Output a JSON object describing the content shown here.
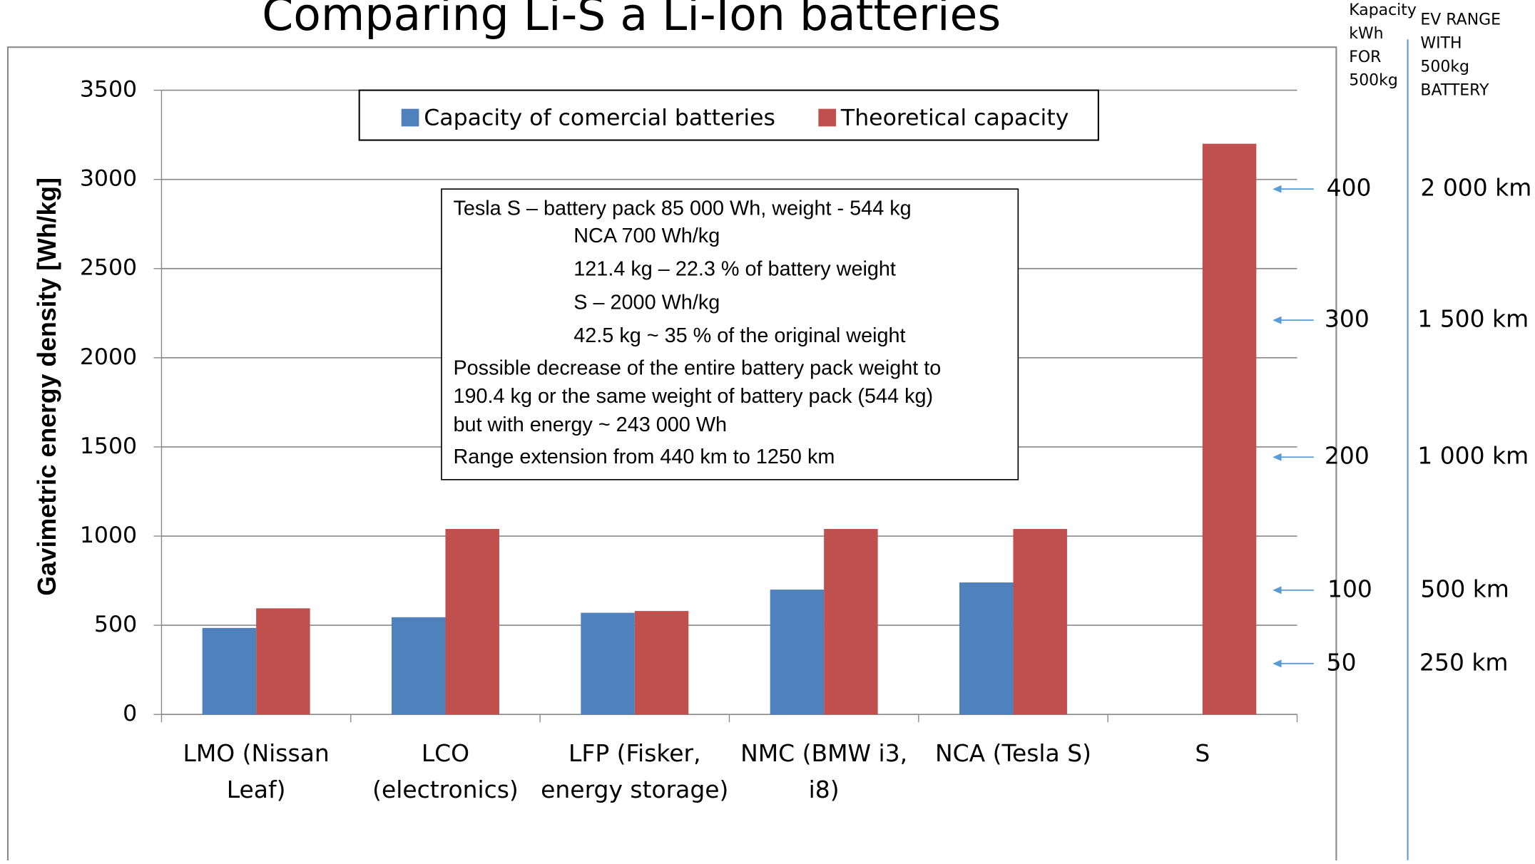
{
  "chart_data": {
    "type": "bar",
    "title": "Comparing Li-S a Li-Ion batteries",
    "ylabel": "Gavimetric energy density [Wh/kg]",
    "categories": [
      "LMO (Nissan\nLeaf)",
      "LCO\n(electronics)",
      "LFP (Fisker,\nenergy storage)",
      "NMC (BMW i3,\ni8)",
      "NCA (Tesla S)",
      "S"
    ],
    "series": [
      {
        "name": "Capacity of comercial batteries",
        "color": "#4f81bd",
        "values": [
          485,
          545,
          570,
          700,
          740,
          null
        ]
      },
      {
        "name": "Theoretical capacity",
        "color": "#c0504d",
        "values": [
          595,
          1040,
          580,
          1040,
          1040,
          3200
        ]
      }
    ],
    "ylim": [
      0,
      3500
    ],
    "yticks": [
      0,
      500,
      1000,
      1500,
      2000,
      2500,
      3000,
      3500
    ],
    "grid": true,
    "textbox": [
      "Tesla S – battery pack 85 000 Wh, weight - 544 kg",
      "NCA 700 Wh/kg",
      "121.4 kg – 22.3 % of battery weight",
      "S – 2000 Wh/kg",
      "42.5 kg ~ 35 % of the original weight",
      "Possible decrease of the entire battery pack weight to",
      "190.4 kg or the same weight  of battery pack (544 kg)",
      "but with energy ~ 243 000 Wh",
      "Range extension from 440 km to 1250 km"
    ],
    "side_headers": [
      "Kapacity\nkWh\nFOR\n500kg",
      "EV RANGE\nWITH\n500kg\nBATTERY"
    ],
    "side_annotations": [
      {
        "capacity": "400",
        "range": "2 000 km"
      },
      {
        "capacity": "300",
        "range": "1 500 km"
      },
      {
        "capacity": "200",
        "range": "1 000 km"
      },
      {
        "capacity": "100",
        "range": "500 km"
      },
      {
        "capacity": "50",
        "range": "250 km"
      }
    ]
  }
}
